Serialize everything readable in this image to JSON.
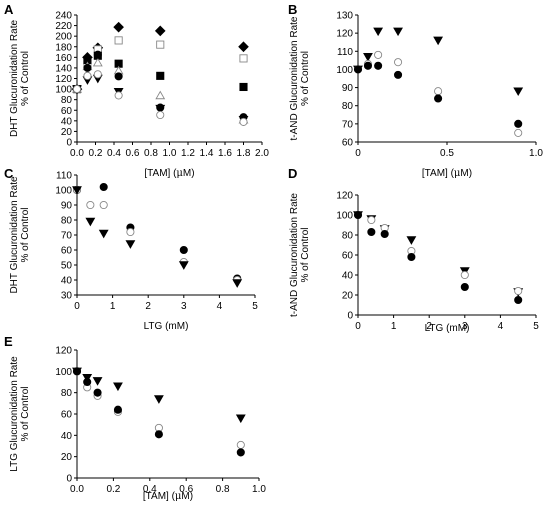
{
  "chart_data": [
    {
      "id": "A",
      "type": "scatter",
      "panel_label": "A",
      "xlabel_main": "[TAM] (",
      "xlabel_unit": "μ",
      "xlabel_end": "M)",
      "ylabel_line1": "DHT Glucuronidation Rate",
      "ylabel_line2": "% of Control",
      "xlim": [
        0,
        2.0
      ],
      "ylim": [
        0,
        240
      ],
      "xticks": [
        0.0,
        0.2,
        0.4,
        0.6,
        0.8,
        1.0,
        1.2,
        1.4,
        1.6,
        1.8,
        2.0
      ],
      "xtick_labels": [
        "0.0",
        "0.2",
        "0.4",
        "0.6",
        "0.8",
        "1.0",
        "1.2",
        "1.4",
        "1.6",
        "1.8",
        "2.0"
      ],
      "yticks": [
        0,
        20,
        40,
        60,
        80,
        100,
        120,
        140,
        160,
        180,
        200,
        220,
        240
      ],
      "ytick_labels": [
        "0",
        "20",
        "40",
        "60",
        "80",
        "100",
        "120",
        "140",
        "160",
        "180",
        "200",
        "220",
        "240"
      ],
      "x": [
        0,
        0.113,
        0.225,
        0.45,
        0.9,
        1.8
      ],
      "series": [
        {
          "marker": "diamond-filled",
          "values": [
            100,
            160,
            178,
            217,
            210,
            180
          ]
        },
        {
          "marker": "square-open",
          "values": [
            100,
            150,
            175,
            192,
            184,
            158
          ]
        },
        {
          "marker": "square-filled",
          "values": [
            100,
            155,
            163,
            148,
            125,
            104
          ]
        },
        {
          "marker": "triangle-open",
          "values": [
            100,
            143,
            150,
            135,
            88,
            42
          ]
        },
        {
          "marker": "circle-filled",
          "values": [
            100,
            140,
            165,
            124,
            65,
            47
          ]
        },
        {
          "marker": "triangle-down-filled",
          "values": [
            100,
            117,
            120,
            95,
            63,
            42
          ]
        },
        {
          "marker": "circle-open",
          "values": [
            100,
            125,
            128,
            88,
            51,
            38
          ]
        }
      ]
    },
    {
      "id": "B",
      "type": "scatter",
      "panel_label": "B",
      "xlabel_main": "[TAM] (",
      "xlabel_unit": "μ",
      "xlabel_end": "M)",
      "ylabel_line1": "t-AND Glucuronidation Rate",
      "ylabel_line2": "% of Control",
      "xlim": [
        0,
        1.0
      ],
      "ylim": [
        60,
        130
      ],
      "xticks": [
        0,
        0.5,
        1.0
      ],
      "xtick_labels": [
        "0",
        "0.5",
        "1.0"
      ],
      "yticks": [
        60,
        70,
        80,
        90,
        100,
        110,
        120,
        130
      ],
      "ytick_labels": [
        "60",
        "70",
        "80",
        "90",
        "100",
        "110",
        "120",
        "130"
      ],
      "x": [
        0,
        0.056,
        0.113,
        0.225,
        0.45,
        0.9
      ],
      "series": [
        {
          "marker": "triangle-down-filled",
          "values": [
            100,
            107,
            121,
            121,
            116,
            88
          ]
        },
        {
          "marker": "circle-open",
          "values": [
            100,
            103,
            108,
            104,
            88,
            65
          ]
        },
        {
          "marker": "circle-filled",
          "values": [
            100,
            102,
            102,
            97,
            84,
            70
          ]
        }
      ]
    },
    {
      "id": "C",
      "type": "scatter",
      "panel_label": "C",
      "xlabel_main": "LTG (mM)",
      "xlabel_unit": "",
      "xlabel_end": "",
      "ylabel_line1": "DHT Glucuronidation Rate",
      "ylabel_line2": "% of Control",
      "xlim": [
        0,
        5
      ],
      "ylim": [
        30,
        110
      ],
      "xticks": [
        0,
        1,
        2,
        3,
        4,
        5
      ],
      "xtick_labels": [
        "0",
        "1",
        "2",
        "3",
        "4",
        "5"
      ],
      "yticks": [
        30,
        40,
        50,
        60,
        70,
        80,
        90,
        100,
        110
      ],
      "ytick_labels": [
        "30",
        "40",
        "50",
        "60",
        "70",
        "80",
        "90",
        "100",
        "110"
      ],
      "x": [
        0,
        0.375,
        0.75,
        1.5,
        3.0,
        4.5
      ],
      "series": [
        {
          "marker": "circle-filled",
          "values": [
            100,
            null,
            102,
            75,
            60,
            41
          ]
        },
        {
          "marker": "circle-open",
          "values": [
            100,
            90,
            90,
            72,
            52,
            40
          ]
        },
        {
          "marker": "triangle-down-filled",
          "values": [
            100,
            79,
            71,
            64,
            50,
            38
          ]
        }
      ]
    },
    {
      "id": "D",
      "type": "scatter",
      "panel_label": "D",
      "xlabel_main": "LTG (mM)",
      "xlabel_unit": "",
      "xlabel_end": "",
      "ylabel_line1": "t-AND Glucuronidation Rate",
      "ylabel_line2": "% of Control",
      "xlim": [
        0,
        5
      ],
      "ylim": [
        0,
        120
      ],
      "xticks": [
        0,
        1,
        2,
        3,
        4,
        5
      ],
      "xtick_labels": [
        "0",
        "1",
        "2",
        "3",
        "4",
        "5"
      ],
      "yticks": [
        0,
        20,
        40,
        60,
        80,
        100,
        120
      ],
      "ytick_labels": [
        "0",
        "20",
        "40",
        "60",
        "80",
        "100",
        "120"
      ],
      "x": [
        0,
        0.375,
        0.75,
        1.5,
        3.0,
        4.5
      ],
      "series": [
        {
          "marker": "triangle-down-filled",
          "values": [
            100,
            96,
            86,
            75,
            44,
            23
          ]
        },
        {
          "marker": "circle-open",
          "values": [
            100,
            95,
            87,
            64,
            40,
            24
          ]
        },
        {
          "marker": "circle-filled",
          "values": [
            100,
            83,
            81,
            58,
            28,
            15
          ]
        }
      ]
    },
    {
      "id": "E",
      "type": "scatter",
      "panel_label": "E",
      "xlabel_main": "[TAM] (",
      "xlabel_unit": "μ",
      "xlabel_end": "M)",
      "ylabel_line1": "LTG Glucuronidation Rate",
      "ylabel_line2": "% of Control",
      "xlim": [
        0,
        1.0
      ],
      "ylim": [
        0,
        120
      ],
      "xticks": [
        0.0,
        0.2,
        0.4,
        0.6,
        0.8,
        1.0
      ],
      "xtick_labels": [
        "0.0",
        "0.2",
        "0.4",
        "0.6",
        "0.8",
        "1.0"
      ],
      "yticks": [
        0,
        20,
        40,
        60,
        80,
        100,
        120
      ],
      "ytick_labels": [
        "0",
        "20",
        "40",
        "60",
        "80",
        "100",
        "120"
      ],
      "x": [
        0,
        0.056,
        0.113,
        0.225,
        0.45,
        0.9
      ],
      "series": [
        {
          "marker": "triangle-down-filled",
          "values": [
            100,
            94,
            91,
            86,
            74,
            56
          ]
        },
        {
          "marker": "circle-open",
          "values": [
            100,
            85,
            77,
            62,
            47,
            31
          ]
        },
        {
          "marker": "circle-filled",
          "values": [
            100,
            90,
            80,
            64,
            41,
            24
          ]
        }
      ]
    }
  ]
}
